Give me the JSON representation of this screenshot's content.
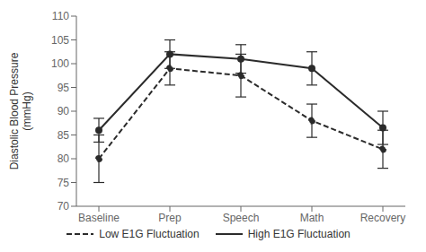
{
  "chart_data": {
    "type": "line",
    "categories": [
      "Baseline",
      "Prep",
      "Speech",
      "Math",
      "Recovery"
    ],
    "series": [
      {
        "name": "Low E1G Fluctuation",
        "color": "#2b2b2b",
        "line_style": "dashed",
        "marker": "circle",
        "values": [
          80,
          99,
          97.5,
          88,
          82
        ],
        "errors": [
          5.0,
          3.5,
          4.5,
          3.5,
          4.0
        ]
      },
      {
        "name": "High E1G Fluctuation",
        "color": "#2b2b2b",
        "line_style": "solid",
        "marker": "circle",
        "values": [
          86,
          102,
          101,
          99,
          86.5
        ],
        "errors": [
          2.5,
          3.0,
          3.0,
          3.5,
          3.5
        ]
      }
    ],
    "ylabel": "Diastolic Blood Pressure\n(mmHg)",
    "ylim": [
      70,
      110
    ],
    "yticks": [
      70,
      75,
      80,
      85,
      90,
      95,
      100,
      105,
      110
    ],
    "grid": false,
    "legend": "bottom"
  }
}
